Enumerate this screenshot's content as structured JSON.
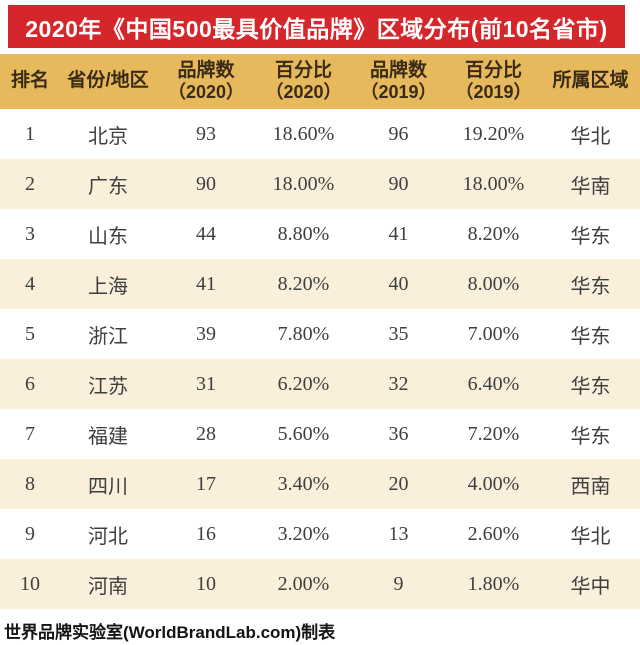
{
  "title": "2020年《中国500最具价值品牌》区域分布(前10名省市)",
  "footer_credit": "世界品牌实验室(WorldBrandLab.com)制表",
  "colors": {
    "banner_bg": "#D5262C",
    "banner_text": "#FFFFFF",
    "header_bg": "#E6B95C",
    "header_text": "#3B2B16",
    "row_bg": "#FFFFFF",
    "row_alt_bg": "#F9EFDA",
    "cell_text": "#3F3F3F",
    "footer_text": "#141414"
  },
  "chart_data": {
    "type": "table",
    "title": "2020年《中国500最具价值品牌》区域分布(前10名省市)",
    "columns": [
      {
        "key": "rank",
        "label": "排名",
        "sub": ""
      },
      {
        "key": "province",
        "label": "省份/地区",
        "sub": ""
      },
      {
        "key": "brands-2020",
        "label": "品牌数",
        "sub": "（2020）"
      },
      {
        "key": "pct-2020",
        "label": "百分比",
        "sub": "（2020）"
      },
      {
        "key": "brands-2019",
        "label": "品牌数",
        "sub": "（2019）"
      },
      {
        "key": "pct-2019",
        "label": "百分比",
        "sub": "（2019）"
      },
      {
        "key": "region",
        "label": "所属区域",
        "sub": ""
      }
    ],
    "rows": [
      [
        "1",
        "北京",
        "93",
        "18.60%",
        "96",
        "19.20%",
        "华北"
      ],
      [
        "2",
        "广东",
        "90",
        "18.00%",
        "90",
        "18.00%",
        "华南"
      ],
      [
        "3",
        "山东",
        "44",
        "8.80%",
        "41",
        "8.20%",
        "华东"
      ],
      [
        "4",
        "上海",
        "41",
        "8.20%",
        "40",
        "8.00%",
        "华东"
      ],
      [
        "5",
        "浙江",
        "39",
        "7.80%",
        "35",
        "7.00%",
        "华东"
      ],
      [
        "6",
        "江苏",
        "31",
        "6.20%",
        "32",
        "6.40%",
        "华东"
      ],
      [
        "7",
        "福建",
        "28",
        "5.60%",
        "36",
        "7.20%",
        "华东"
      ],
      [
        "8",
        "四川",
        "17",
        "3.40%",
        "20",
        "4.00%",
        "西南"
      ],
      [
        "9",
        "河北",
        "16",
        "3.20%",
        "13",
        "2.60%",
        "华北"
      ],
      [
        "10",
        "河南",
        "10",
        "2.00%",
        "9",
        "1.80%",
        "华中"
      ]
    ],
    "source_note": "世界品牌实验室(WorldBrandLab.com)制表"
  }
}
